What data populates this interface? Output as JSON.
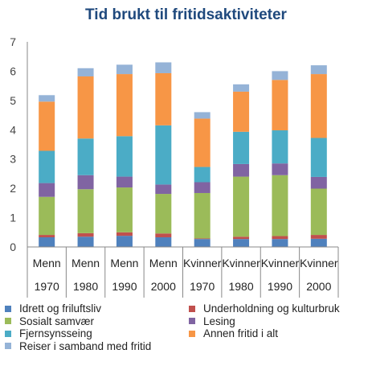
{
  "chart_data": {
    "type": "bar",
    "stacked": true,
    "title": "Tid brukt til fritidsaktiviteter",
    "categories": [
      [
        "Menn",
        "1970"
      ],
      [
        "Menn",
        "1980"
      ],
      [
        "Menn",
        "1990"
      ],
      [
        "Menn",
        "2000"
      ],
      [
        "Kvinner",
        "1970"
      ],
      [
        "Kvinner",
        "1980"
      ],
      [
        "Kvinner",
        "1990"
      ],
      [
        "Kvinner",
        "2000"
      ]
    ],
    "ylim": [
      0,
      7
    ],
    "yticks": [
      "0",
      "1",
      "2",
      "3",
      "4",
      "5",
      "6",
      "7"
    ],
    "grid": false,
    "legend_position": "bottom",
    "series": [
      {
        "name": "Idrett og friluftsliv",
        "color": "#4F81BD",
        "values": [
          0.33,
          0.35,
          0.38,
          0.33,
          0.27,
          0.27,
          0.27,
          0.28
        ]
      },
      {
        "name": "Underholdning og kulturbruk",
        "color": "#C0504D",
        "values": [
          0.08,
          0.12,
          0.12,
          0.13,
          0.02,
          0.08,
          0.1,
          0.13
        ]
      },
      {
        "name": "Sosialt samvær",
        "color": "#9BBB59",
        "values": [
          1.3,
          1.5,
          1.53,
          1.35,
          1.55,
          2.05,
          2.08,
          1.58
        ]
      },
      {
        "name": "Lesing",
        "color": "#8064A2",
        "values": [
          0.47,
          0.48,
          0.37,
          0.32,
          0.37,
          0.43,
          0.4,
          0.4
        ]
      },
      {
        "name": "Fjernsynsseing",
        "color": "#4BACC6",
        "values": [
          1.1,
          1.25,
          1.38,
          2.02,
          0.52,
          1.1,
          1.13,
          1.33
        ]
      },
      {
        "name": "Annen fritid i alt",
        "color": "#F79646",
        "values": [
          1.68,
          2.12,
          2.12,
          1.78,
          1.65,
          1.37,
          1.72,
          2.18
        ]
      },
      {
        "name": "Reiser i samband med fritid",
        "color": "#95B3D7",
        "values": [
          0.22,
          0.28,
          0.32,
          0.37,
          0.22,
          0.25,
          0.3,
          0.3
        ]
      }
    ]
  }
}
